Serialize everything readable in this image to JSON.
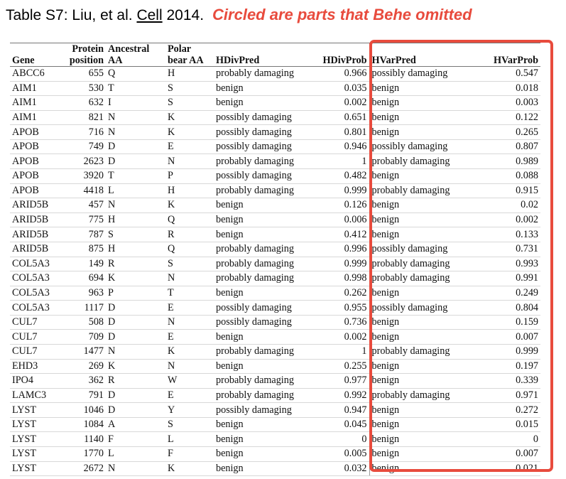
{
  "caption": {
    "prefix": "Table S7: Liu, et al. ",
    "journal": "Cell",
    "year": " 2014.",
    "note": "Circled are parts that Behe omitted"
  },
  "highlight_color": "#e84b3d",
  "table": {
    "header_top": [
      "",
      "Protein",
      "Ancestral",
      "Polar",
      "",
      "",
      "",
      ""
    ],
    "header_bottom": [
      "Gene",
      "position",
      "AA",
      "bear AA",
      "HDivPred",
      "HDivProb",
      "HVarPred",
      "HVarProb"
    ],
    "rows": [
      [
        "ABCC6",
        "655",
        "Q",
        "H",
        "probably damaging",
        "0.966",
        "possibly damaging",
        "0.547"
      ],
      [
        "AIM1",
        "530",
        "T",
        "S",
        "benign",
        "0.035",
        "benign",
        "0.018"
      ],
      [
        "AIM1",
        "632",
        "I",
        "S",
        "benign",
        "0.002",
        "benign",
        "0.003"
      ],
      [
        "AIM1",
        "821",
        "N",
        "K",
        "possibly damaging",
        "0.651",
        "benign",
        "0.122"
      ],
      [
        "APOB",
        "716",
        "N",
        "K",
        "possibly damaging",
        "0.801",
        "benign",
        "0.265"
      ],
      [
        "APOB",
        "749",
        "D",
        "E",
        "possibly damaging",
        "0.946",
        "possibly damaging",
        "0.807"
      ],
      [
        "APOB",
        "2623",
        "D",
        "N",
        "probably damaging",
        "1",
        "probably damaging",
        "0.989"
      ],
      [
        "APOB",
        "3920",
        "T",
        "P",
        "possibly damaging",
        "0.482",
        "benign",
        "0.088"
      ],
      [
        "APOB",
        "4418",
        "L",
        "H",
        "probably damaging",
        "0.999",
        "probably damaging",
        "0.915"
      ],
      [
        "ARID5B",
        "457",
        "N",
        "K",
        "benign",
        "0.126",
        "benign",
        "0.02"
      ],
      [
        "ARID5B",
        "775",
        "H",
        "Q",
        "benign",
        "0.006",
        "benign",
        "0.002"
      ],
      [
        "ARID5B",
        "787",
        "S",
        "R",
        "benign",
        "0.412",
        "benign",
        "0.133"
      ],
      [
        "ARID5B",
        "875",
        "H",
        "Q",
        "probably damaging",
        "0.996",
        "possibly damaging",
        "0.731"
      ],
      [
        "COL5A3",
        "149",
        "R",
        "S",
        "probably damaging",
        "0.999",
        "probably damaging",
        "0.993"
      ],
      [
        "COL5A3",
        "694",
        "K",
        "N",
        "probably damaging",
        "0.998",
        "probably damaging",
        "0.991"
      ],
      [
        "COL5A3",
        "963",
        "P",
        "T",
        "benign",
        "0.262",
        "benign",
        "0.249"
      ],
      [
        "COL5A3",
        "1117",
        "D",
        "E",
        "possibly damaging",
        "0.955",
        "possibly damaging",
        "0.804"
      ],
      [
        "CUL7",
        "508",
        "D",
        "N",
        "possibly damaging",
        "0.736",
        "benign",
        "0.159"
      ],
      [
        "CUL7",
        "709",
        "D",
        "E",
        "benign",
        "0.002",
        "benign",
        "0.007"
      ],
      [
        "CUL7",
        "1477",
        "N",
        "K",
        "probably damaging",
        "1",
        "probably damaging",
        "0.999"
      ],
      [
        "EHD3",
        "269",
        "K",
        "N",
        "benign",
        "0.255",
        "benign",
        "0.197"
      ],
      [
        "IPO4",
        "362",
        "R",
        "W",
        "probably damaging",
        "0.977",
        "benign",
        "0.339"
      ],
      [
        "LAMC3",
        "791",
        "D",
        "E",
        "probably damaging",
        "0.992",
        "probably damaging",
        "0.971"
      ],
      [
        "LYST",
        "1046",
        "D",
        "Y",
        "possibly damaging",
        "0.947",
        "benign",
        "0.272"
      ],
      [
        "LYST",
        "1084",
        "A",
        "S",
        "benign",
        "0.045",
        "benign",
        "0.015"
      ],
      [
        "LYST",
        "1140",
        "F",
        "L",
        "benign",
        "0",
        "benign",
        "0"
      ],
      [
        "LYST",
        "1770",
        "L",
        "F",
        "benign",
        "0.005",
        "benign",
        "0.007"
      ],
      [
        "LYST",
        "2672",
        "N",
        "K",
        "benign",
        "0.032",
        "benign",
        "0.021"
      ]
    ]
  }
}
